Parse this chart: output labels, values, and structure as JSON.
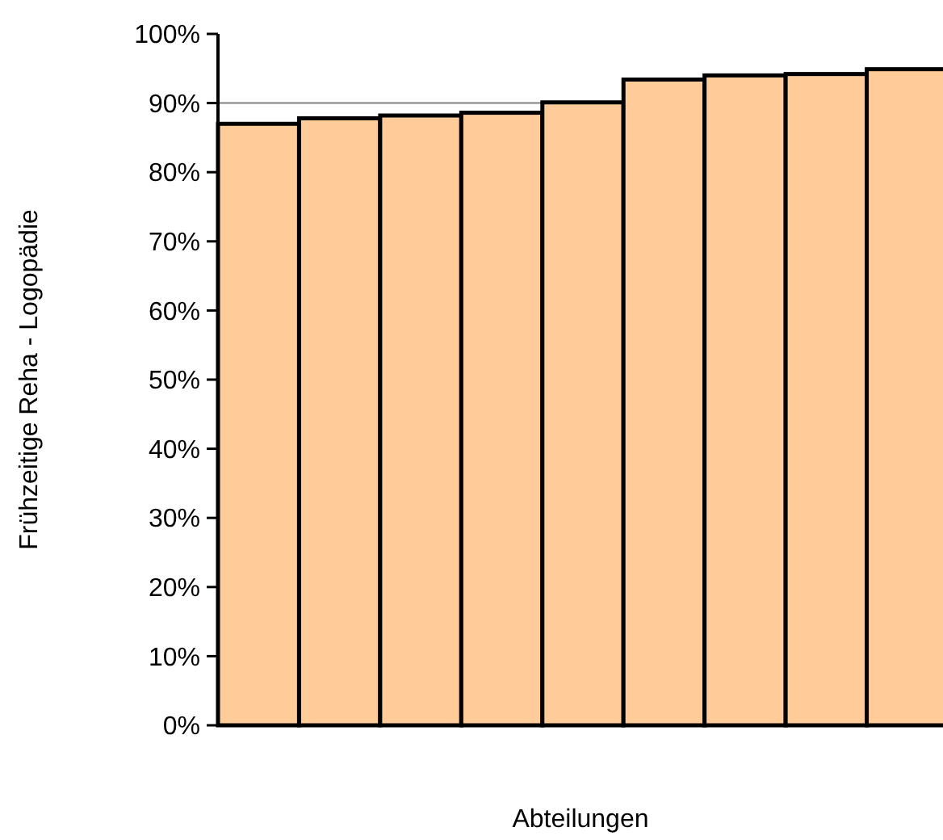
{
  "chart_data": {
    "type": "bar",
    "xlabel": "Abteilungen",
    "ylabel": "Frühzeitige Reha - Logopädie",
    "categories": [
      null,
      null,
      null,
      null,
      null,
      null,
      null,
      null,
      null
    ],
    "values": [
      87.0,
      87.8,
      88.2,
      88.6,
      90.1,
      93.4,
      94.0,
      94.2,
      94.9
    ],
    "color": "#ffcc99",
    "ylim": [
      0,
      100
    ],
    "yticks": [
      {
        "value": 0,
        "label": "0%"
      },
      {
        "value": 10,
        "label": "10%"
      },
      {
        "value": 20,
        "label": "20%"
      },
      {
        "value": 30,
        "label": "30%"
      },
      {
        "value": 40,
        "label": "40%"
      },
      {
        "value": 50,
        "label": "50%"
      },
      {
        "value": 60,
        "label": "60%"
      },
      {
        "value": 70,
        "label": "70%"
      },
      {
        "value": 80,
        "label": "80%"
      },
      {
        "value": 90,
        "label": "90%"
      },
      {
        "value": 100,
        "label": "100%"
      }
    ],
    "ref_lines": [
      {
        "axis": "y",
        "value": 90,
        "color": "#808080"
      }
    ],
    "grid": false
  }
}
